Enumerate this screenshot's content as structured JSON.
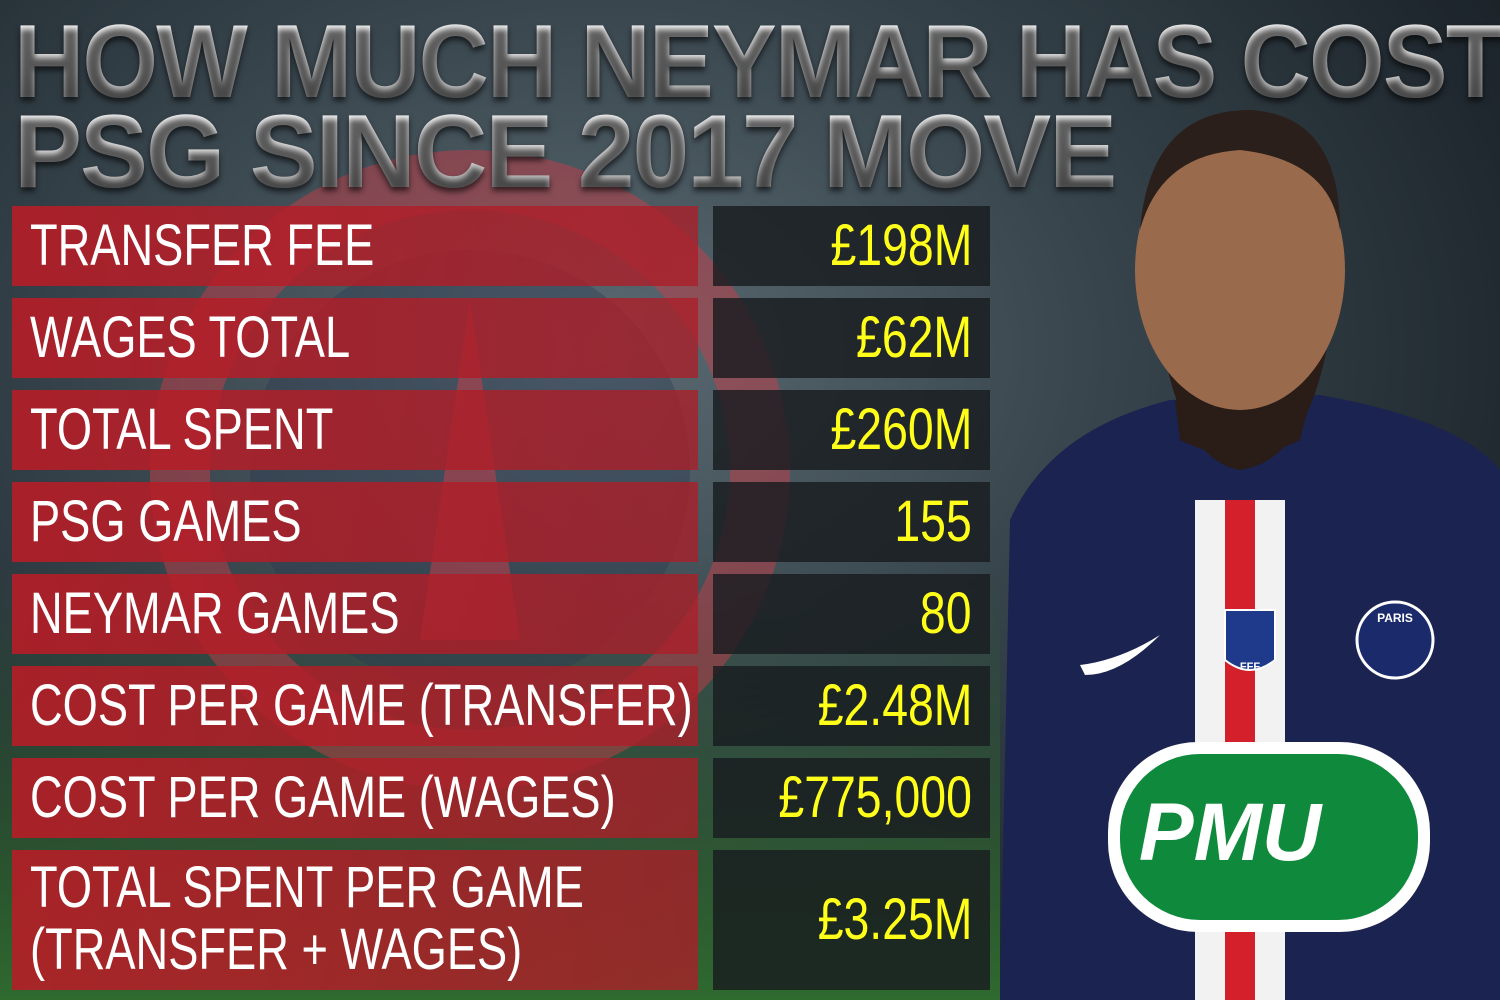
{
  "header": {
    "title_lines": [
      "HOW MUCH NEYMAR HAS COST",
      "PSG SINCE 2017 MOVE"
    ]
  },
  "table": {
    "rows": [
      {
        "label_lines": [
          "TRANSFER FEE"
        ],
        "value": "£198M"
      },
      {
        "label_lines": [
          "WAGES TOTAL"
        ],
        "value": "£62M"
      },
      {
        "label_lines": [
          "TOTAL SPENT"
        ],
        "value": "£260M"
      },
      {
        "label_lines": [
          "PSG GAMES"
        ],
        "value": "155"
      },
      {
        "label_lines": [
          "NEYMAR GAMES"
        ],
        "value": "80"
      },
      {
        "label_lines": [
          "COST PER GAME (TRANSFER)"
        ],
        "value": "£2.48M"
      },
      {
        "label_lines": [
          "COST PER GAME (WAGES)"
        ],
        "value": "£775,000"
      },
      {
        "label_lines": [
          "TOTAL SPENT PER GAME",
          "(TRANSFER + WAGES)"
        ],
        "value": "£3.25M"
      }
    ]
  },
  "jersey": {
    "sponsor": "PMU",
    "club_badge": "PARIS",
    "cup_badge": "FFF"
  }
}
